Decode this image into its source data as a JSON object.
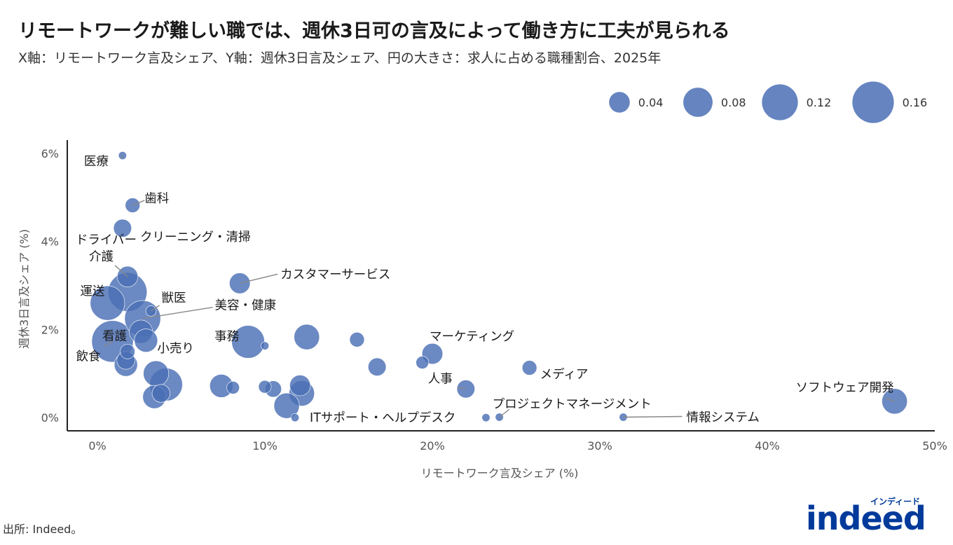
{
  "header": {
    "title": "リモートワークが難しい職では、週休3日可の言及によって働き方に工夫が見られる",
    "subtitle": "X軸：リモートワーク言及シェア、Y軸：週休3日言及シェア、円の大きさ：求人に占める職種割合、2025年"
  },
  "footer": {
    "source": "出所: Indeed。"
  },
  "logo": {
    "text": "indeed",
    "kana": "インディード",
    "color": "#003a9b"
  },
  "colors": {
    "bubble": "#4a6fb5",
    "axis": "#222222",
    "leader": "#888888"
  },
  "chart_data": {
    "type": "scatter",
    "xlabel": "リモートワーク言及シェア (%)",
    "ylabel": "週休3日言及シェア (%)",
    "xlim": [
      -1.8,
      50
    ],
    "ylim": [
      -0.3,
      6.3
    ],
    "xticks": [
      0,
      10,
      20,
      30,
      40,
      50
    ],
    "xtick_labels": [
      "0%",
      "10%",
      "20%",
      "30%",
      "40%",
      "50%"
    ],
    "yticks": [
      0,
      2,
      4,
      6
    ],
    "ytick_labels": [
      "0%",
      "2%",
      "4%",
      "6%"
    ],
    "grid": false,
    "legend": {
      "placement": "top-right",
      "values": [
        0.04,
        0.08,
        0.12,
        0.16
      ],
      "labels": [
        "0.04",
        "0.08",
        "0.12",
        "0.16"
      ]
    },
    "points": [
      {
        "x": 1.5,
        "y": 5.95,
        "size": 0.006,
        "label": "医療"
      },
      {
        "x": 2.1,
        "y": 4.82,
        "size": 0.02,
        "label": "歯科"
      },
      {
        "x": 1.5,
        "y": 4.3,
        "size": 0.03,
        "label": "ドライバー"
      },
      {
        "x": 1.8,
        "y": 3.2,
        "size": 0.04,
        "label": "介護"
      },
      {
        "x": 1.8,
        "y": 2.85,
        "size": 0.14,
        "label": "クリーニング・清掃"
      },
      {
        "x": 8.5,
        "y": 3.05,
        "size": 0.04,
        "label": "カスタマーサービス"
      },
      {
        "x": 0.6,
        "y": 2.6,
        "size": 0.11,
        "label": "運送"
      },
      {
        "x": 3.2,
        "y": 2.42,
        "size": 0.01,
        "label": "獣医"
      },
      {
        "x": 2.7,
        "y": 2.25,
        "size": 0.12,
        "label": "美容・健康"
      },
      {
        "x": 2.6,
        "y": 1.95,
        "size": 0.05,
        "label": "看護"
      },
      {
        "x": 2.9,
        "y": 1.75,
        "size": 0.05,
        "label": "小売り"
      },
      {
        "x": 9.0,
        "y": 1.72,
        "size": 0.1,
        "label": "事務"
      },
      {
        "x": 0.9,
        "y": 1.73,
        "size": 0.16,
        "label": "飲食"
      },
      {
        "x": 1.8,
        "y": 1.5,
        "size": 0.02,
        "label": ""
      },
      {
        "x": 1.7,
        "y": 1.3,
        "size": 0.03,
        "label": ""
      },
      {
        "x": 1.7,
        "y": 1.2,
        "size": 0.05,
        "label": ""
      },
      {
        "x": 10.0,
        "y": 1.63,
        "size": 0.006,
        "label": ""
      },
      {
        "x": 12.5,
        "y": 1.83,
        "size": 0.06,
        "label": ""
      },
      {
        "x": 15.5,
        "y": 1.77,
        "size": 0.02,
        "label": ""
      },
      {
        "x": 16.7,
        "y": 1.15,
        "size": 0.03,
        "label": ""
      },
      {
        "x": 19.4,
        "y": 1.25,
        "size": 0.015,
        "label": ""
      },
      {
        "x": 20.0,
        "y": 1.45,
        "size": 0.04,
        "label": "マーケティング"
      },
      {
        "x": 25.8,
        "y": 1.13,
        "size": 0.02,
        "label": "メディア"
      },
      {
        "x": 22.0,
        "y": 0.65,
        "size": 0.03,
        "label": "人事"
      },
      {
        "x": 3.5,
        "y": 1.0,
        "size": 0.06,
        "label": ""
      },
      {
        "x": 4.1,
        "y": 0.75,
        "size": 0.1,
        "label": ""
      },
      {
        "x": 3.4,
        "y": 0.47,
        "size": 0.05,
        "label": ""
      },
      {
        "x": 3.8,
        "y": 0.55,
        "size": 0.03,
        "label": ""
      },
      {
        "x": 7.4,
        "y": 0.72,
        "size": 0.05,
        "label": ""
      },
      {
        "x": 8.1,
        "y": 0.68,
        "size": 0.015,
        "label": ""
      },
      {
        "x": 10.0,
        "y": 0.7,
        "size": 0.015,
        "label": ""
      },
      {
        "x": 10.5,
        "y": 0.65,
        "size": 0.025,
        "label": ""
      },
      {
        "x": 12.1,
        "y": 0.73,
        "size": 0.04,
        "label": ""
      },
      {
        "x": 12.2,
        "y": 0.55,
        "size": 0.06,
        "label": ""
      },
      {
        "x": 11.3,
        "y": 0.27,
        "size": 0.06,
        "label": ""
      },
      {
        "x": 11.8,
        "y": 0.0,
        "size": 0.006,
        "label": "ITサポート・ヘルプデスク"
      },
      {
        "x": 23.2,
        "y": 0.0,
        "size": 0.006,
        "label": ""
      },
      {
        "x": 24.0,
        "y": 0.01,
        "size": 0.006,
        "label": "プロジェクトマネージメント"
      },
      {
        "x": 31.4,
        "y": 0.01,
        "size": 0.006,
        "label": "情報システム"
      },
      {
        "x": 47.6,
        "y": 0.37,
        "size": 0.06,
        "label": "ソフトウェア開発"
      }
    ]
  }
}
